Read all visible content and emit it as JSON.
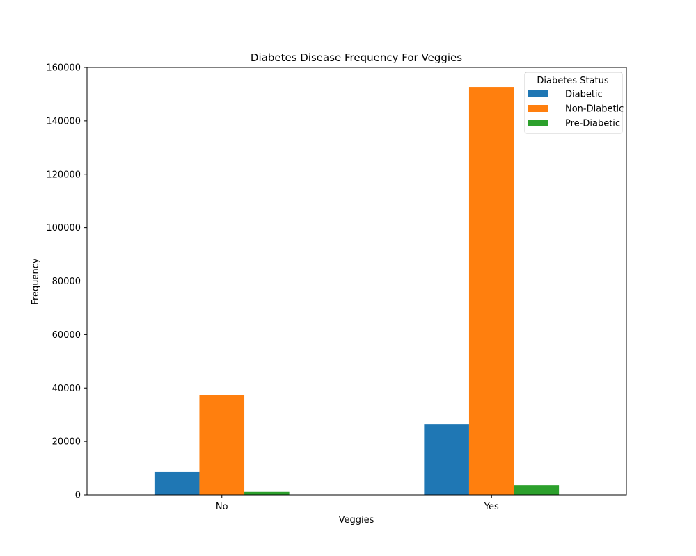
{
  "chart_data": {
    "type": "bar",
    "title": "Diabetes Disease Frequency For Veggies",
    "xlabel": "Veggies",
    "ylabel": "Frequency",
    "categories": [
      "No",
      "Yes"
    ],
    "series": [
      {
        "name": "Diabetic",
        "values": [
          8600,
          26500
        ],
        "color": "#1f77b4"
      },
      {
        "name": "Non-Diabetic",
        "values": [
          37400,
          152700
        ],
        "color": "#ff7f0e"
      },
      {
        "name": "Pre-Diabetic",
        "values": [
          1100,
          3600
        ],
        "color": "#2ca02c"
      }
    ],
    "ylim": [
      0,
      160000
    ],
    "yticks": [
      "0",
      "20000",
      "40000",
      "60000",
      "80000",
      "100000",
      "120000",
      "140000",
      "160000"
    ],
    "legend": {
      "title": "Diabetes Status",
      "position": "top-right"
    },
    "grid": false
  }
}
